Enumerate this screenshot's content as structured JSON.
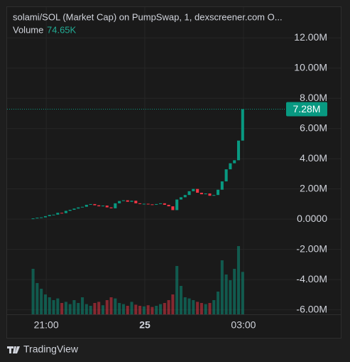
{
  "chart_data": {
    "type": "candlestick",
    "title": "solami/SOL (Market Cap) on PumpSwap, 1, dexscreener.com  O...",
    "up_color": "#089981",
    "down_color": "#f23645",
    "x": [
      -0.4,
      -0.275,
      -0.15,
      -0.025,
      0.1,
      0.225,
      0.35,
      0.475,
      0.6,
      0.725,
      0.85,
      0.975,
      1.1,
      1.225,
      1.35,
      1.475,
      1.6,
      1.725,
      1.85,
      1.975,
      2.1,
      2.225,
      2.35,
      2.475,
      2.6,
      2.725,
      2.85,
      2.975,
      3.1,
      3.225,
      3.35,
      3.475,
      3.6,
      3.725,
      3.85,
      3.975,
      4.1,
      4.225,
      4.35,
      4.475,
      4.6,
      4.725,
      4.85,
      4.975,
      5.1,
      5.225,
      5.35,
      5.475,
      5.6,
      5.725,
      5.85,
      5.975
    ],
    "close": [
      50000,
      100000,
      120000,
      200000,
      280000,
      300000,
      420000,
      400000,
      550000,
      620000,
      700000,
      780000,
      820000,
      950000,
      1000000,
      920000,
      850000,
      900000,
      780000,
      720000,
      1050000,
      1200000,
      1250000,
      1150000,
      1220000,
      1050000,
      1000000,
      1020000,
      980000,
      950000,
      1000000,
      1050000,
      950000,
      850000,
      600000,
      1300000,
      1450000,
      1600000,
      1850000,
      2000000,
      1750000,
      1650000,
      1700000,
      1550000,
      1600000,
      1950000,
      2500000,
      3300000,
      3700000,
      3900000,
      5200000,
      7280000
    ],
    "last_price": {
      "value": 7280000,
      "label": "7.28M"
    },
    "volume": {
      "name": "Volume",
      "last_label": "74.65K",
      "ylim": [
        0,
        150
      ],
      "values": [
        80,
        55,
        45,
        35,
        30,
        25,
        28,
        20,
        22,
        18,
        25,
        20,
        30,
        18,
        15,
        20,
        22,
        16,
        25,
        30,
        28,
        20,
        18,
        15,
        22,
        17,
        15,
        14,
        16,
        13,
        15,
        18,
        20,
        25,
        35,
        85,
        50,
        30,
        28,
        25,
        22,
        20,
        18,
        20,
        25,
        40,
        95,
        70,
        60,
        80,
        120,
        74.65
      ]
    },
    "xlim": [
      -1.19,
      7.34
    ],
    "xticks": [
      {
        "value": 0,
        "label": "21:00"
      },
      {
        "value": 3,
        "label": "25"
      },
      {
        "value": 6,
        "label": "03:00"
      }
    ],
    "ylim": [
      -6300000,
      13800000
    ],
    "yticks": [
      {
        "value": 12000000,
        "label": "12.00M"
      },
      {
        "value": 10000000,
        "label": "10.00M"
      },
      {
        "value": 8000000,
        "label": "8.00M"
      },
      {
        "value": 6000000,
        "label": "6.00M"
      },
      {
        "value": 4000000,
        "label": "4.00M"
      },
      {
        "value": 2000000,
        "label": "2.00M"
      },
      {
        "value": 0,
        "label": "0.0000"
      },
      {
        "value": -2000000,
        "label": "-2.00M"
      },
      {
        "value": -4000000,
        "label": "-4.00M"
      },
      {
        "value": -6000000,
        "label": "-6.00M"
      }
    ],
    "grid": true
  },
  "footer": {
    "brand": "TradingView"
  }
}
